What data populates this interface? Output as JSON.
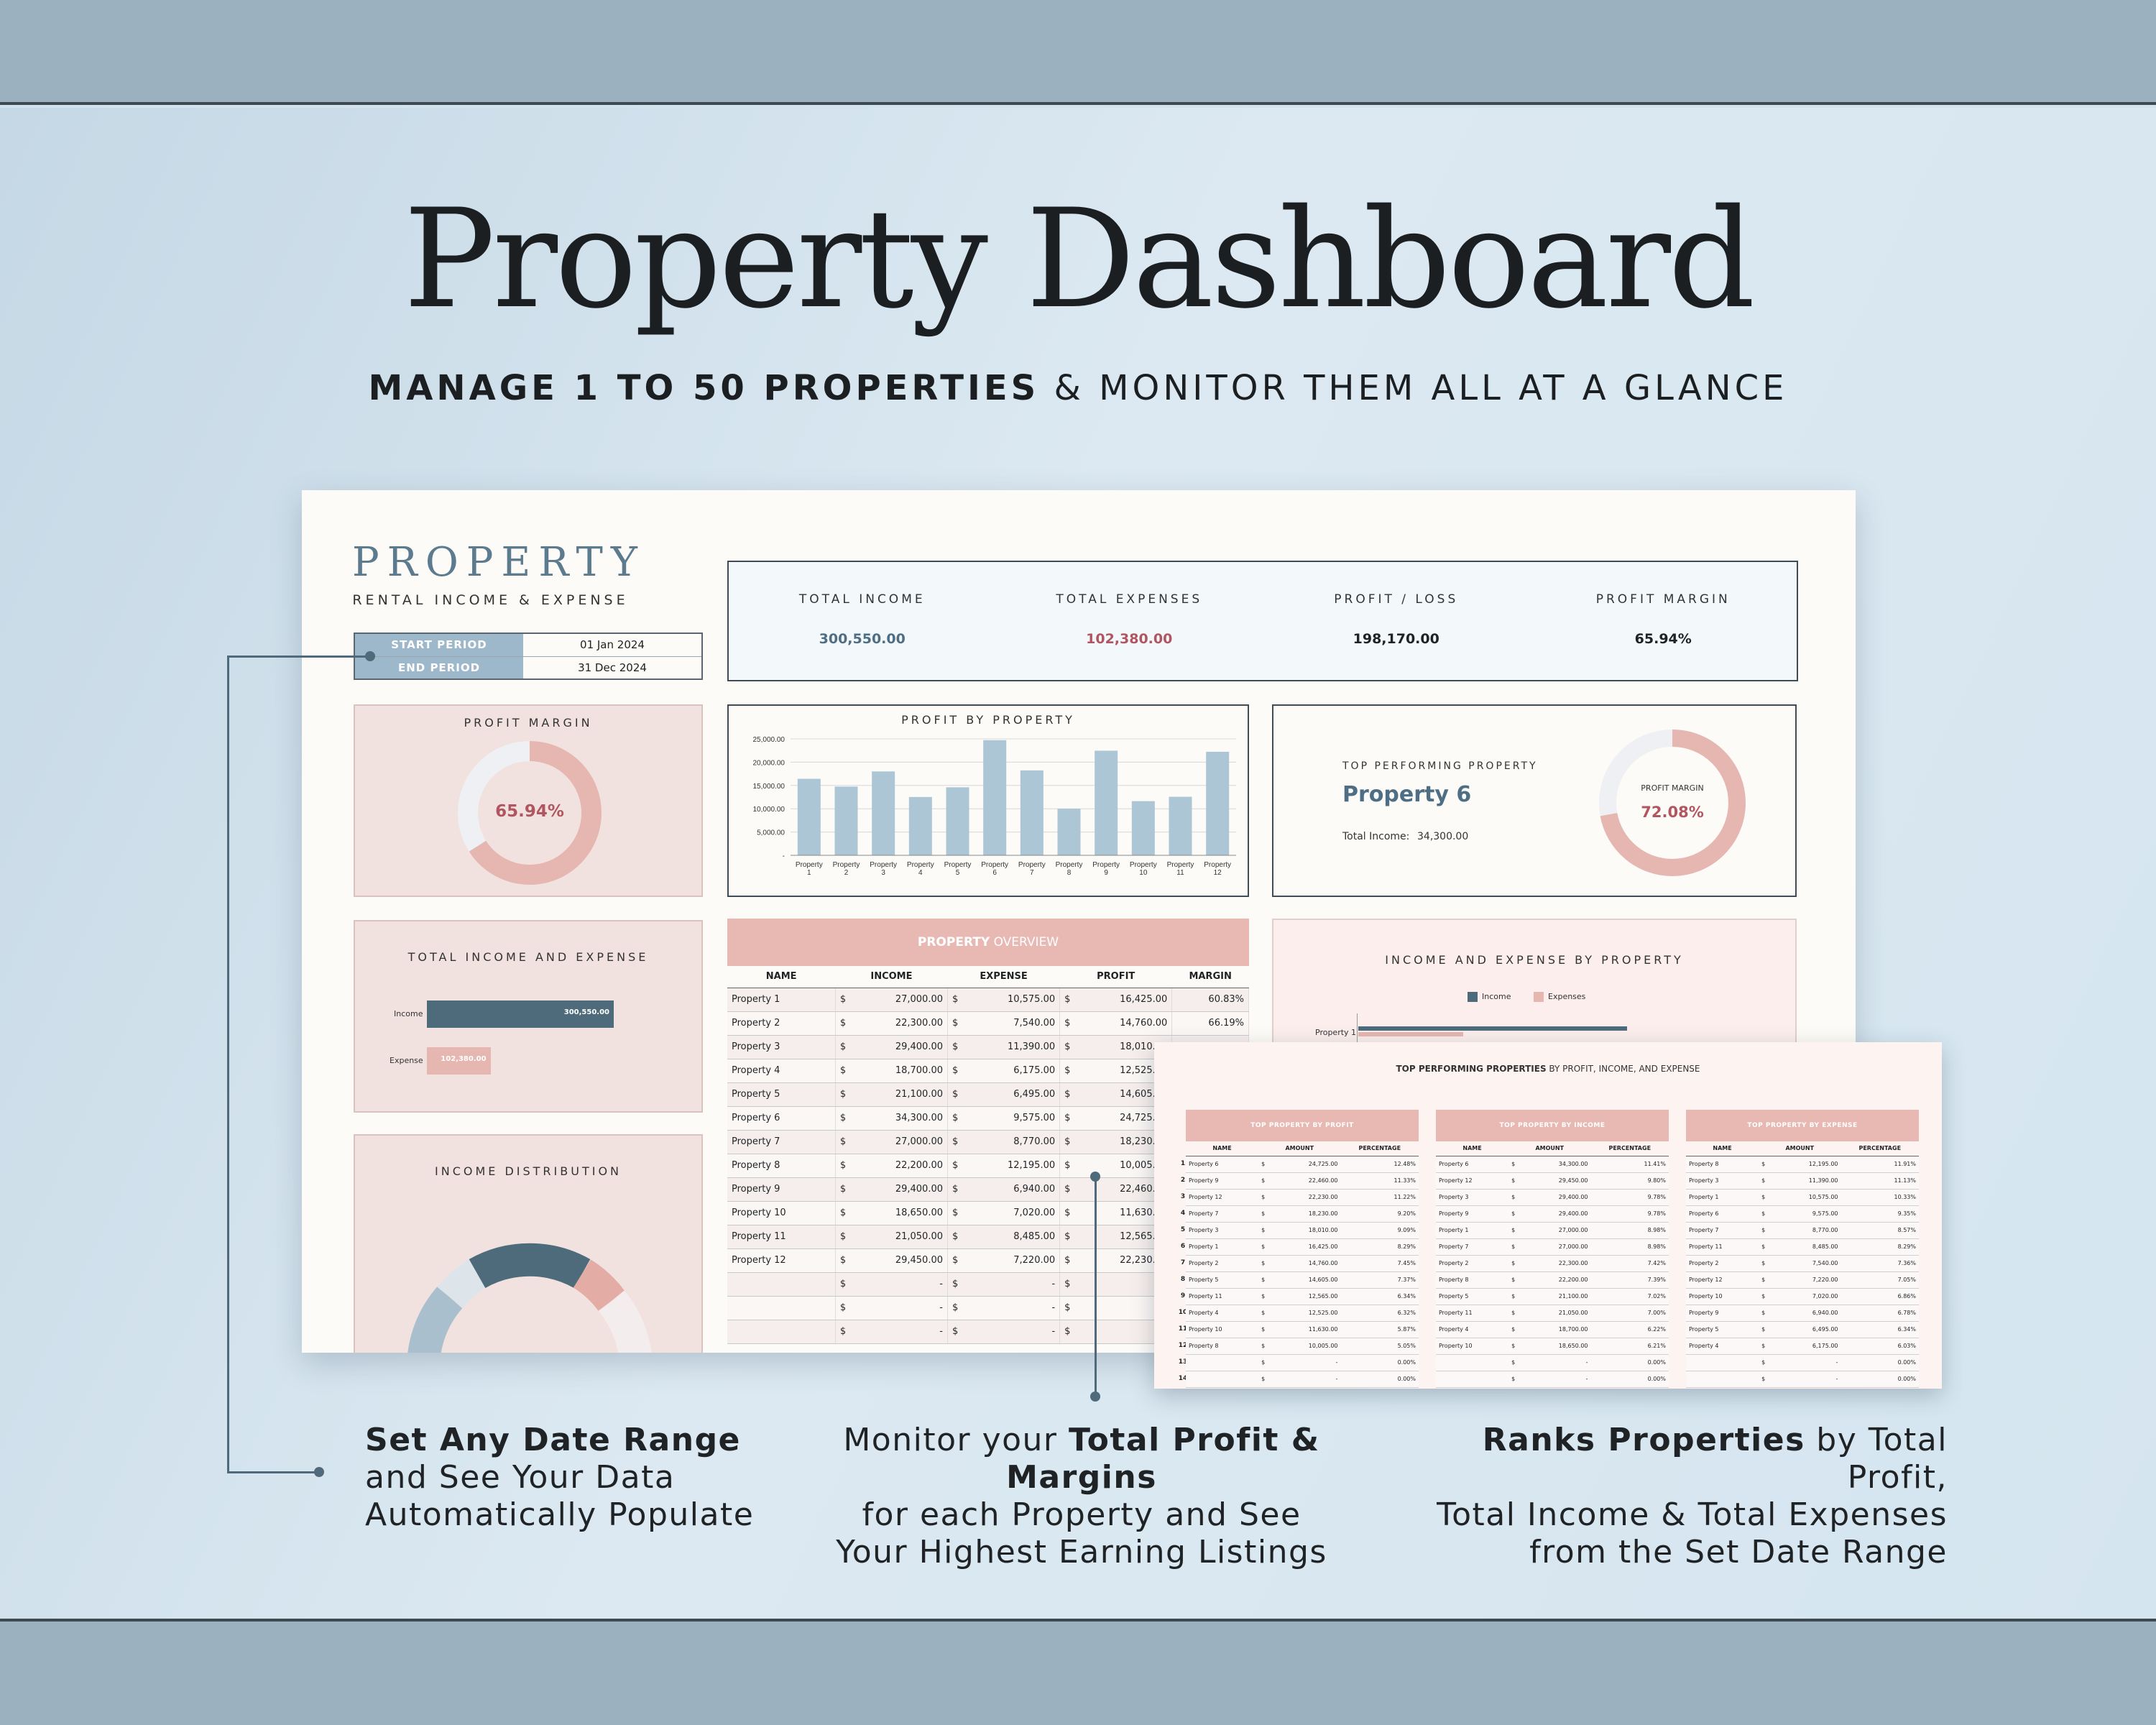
{
  "hero": {
    "title": "Property Dashboard",
    "subtitle_bold": "MANAGE 1 TO 50 PROPERTIES",
    "subtitle_rest": " & MONITOR THEM ALL AT A GLANCE"
  },
  "brand": {
    "name": "PROPERTY",
    "tagline": "RENTAL INCOME & EXPENSE"
  },
  "period": {
    "start_label": "START PERIOD",
    "start_value": "01 Jan 2024",
    "end_label": "END PERIOD",
    "end_value": "31 Dec 2024"
  },
  "kpis": [
    {
      "label": "TOTAL INCOME",
      "value": "300,550.00",
      "color": "#4d6e84"
    },
    {
      "label": "TOTAL EXPENSES",
      "value": "102,380.00",
      "color": "#b05660"
    },
    {
      "label": "PROFIT / LOSS",
      "value": "198,170.00",
      "color": "#222222"
    },
    {
      "label": "PROFIT MARGIN",
      "value": "65.94%",
      "color": "#222222"
    }
  ],
  "profit_margin": {
    "title": "PROFIT MARGIN",
    "value": "65.94%",
    "fraction": 0.6594
  },
  "top_property": {
    "title": "TOP PERFORMING PROPERTY",
    "name": "Property 6",
    "income_label": "Total Income:",
    "income_value": "34,300.00",
    "margin_label": "PROFIT MARGIN",
    "margin_value": "72.08%",
    "fraction": 0.7208
  },
  "income_expense": {
    "title": "TOTAL INCOME AND EXPENSE",
    "income_label": "Income",
    "income_value": "300,550.00",
    "expense_label": "Expense",
    "expense_value": "102,380.00",
    "income": 300550,
    "expense": 102380
  },
  "income_distribution": {
    "title": "INCOME DISTRIBUTION"
  },
  "overview": {
    "title_bold": "PROPERTY",
    "title_rest": " OVERVIEW",
    "headers": [
      "NAME",
      "INCOME",
      "EXPENSE",
      "PROFIT",
      "MARGIN"
    ],
    "currency": "$",
    "dash": "-",
    "rows": [
      [
        "Property 1",
        "27,000.00",
        "10,575.00",
        "16,425.00",
        "60.83%"
      ],
      [
        "Property 2",
        "22,300.00",
        "7,540.00",
        "14,760.00",
        "66.19%"
      ],
      [
        "Property 3",
        "29,400.00",
        "11,390.00",
        "18,010.00",
        ""
      ],
      [
        "Property 4",
        "18,700.00",
        "6,175.00",
        "12,525.00",
        ""
      ],
      [
        "Property 5",
        "21,100.00",
        "6,495.00",
        "14,605.00",
        ""
      ],
      [
        "Property 6",
        "34,300.00",
        "9,575.00",
        "24,725.00",
        ""
      ],
      [
        "Property 7",
        "27,000.00",
        "8,770.00",
        "18,230.00",
        ""
      ],
      [
        "Property 8",
        "22,200.00",
        "12,195.00",
        "10,005.00",
        ""
      ],
      [
        "Property 9",
        "29,400.00",
        "6,940.00",
        "22,460.00",
        ""
      ],
      [
        "Property 10",
        "18,650.00",
        "7,020.00",
        "11,630.00",
        ""
      ],
      [
        "Property 11",
        "21,050.00",
        "8,485.00",
        "12,565.00",
        ""
      ],
      [
        "Property 12",
        "29,450.00",
        "7,220.00",
        "22,230.00",
        ""
      ]
    ]
  },
  "ie_by_property": {
    "title": "INCOME AND EXPENSE BY PROPERTY",
    "legend_income": "Income",
    "legend_expense": "Expenses",
    "first_row": "Property 1"
  },
  "top_panel": {
    "title_bold": "TOP PERFORMING PROPERTIES",
    "title_rest": " BY PROFIT, INCOME, AND EXPENSE",
    "headers": [
      "NAME",
      "AMOUNT",
      "PERCENTAGE"
    ],
    "row_numbers": [
      "1",
      "2",
      "3",
      "4",
      "5",
      "6",
      "7",
      "8",
      "9",
      "10",
      "11",
      "12",
      "13",
      "14"
    ],
    "tables": [
      {
        "title": "TOP PROPERTY BY PROFIT",
        "rows": [
          [
            "Property 6",
            "24,725.00",
            "12.48%"
          ],
          [
            "Property 9",
            "22,460.00",
            "11.33%"
          ],
          [
            "Property 12",
            "22,230.00",
            "11.22%"
          ],
          [
            "Property 7",
            "18,230.00",
            "9.20%"
          ],
          [
            "Property 3",
            "18,010.00",
            "9.09%"
          ],
          [
            "Property 1",
            "16,425.00",
            "8.29%"
          ],
          [
            "Property 2",
            "14,760.00",
            "7.45%"
          ],
          [
            "Property 5",
            "14,605.00",
            "7.37%"
          ],
          [
            "Property 11",
            "12,565.00",
            "6.34%"
          ],
          [
            "Property 4",
            "12,525.00",
            "6.32%"
          ],
          [
            "Property 10",
            "11,630.00",
            "5.87%"
          ],
          [
            "Property 8",
            "10,005.00",
            "5.05%"
          ],
          [
            "",
            "-",
            "0.00%"
          ],
          [
            "",
            "-",
            "0.00%"
          ]
        ]
      },
      {
        "title": "TOP PROPERTY BY INCOME",
        "rows": [
          [
            "Property 6",
            "34,300.00",
            "11.41%"
          ],
          [
            "Property 12",
            "29,450.00",
            "9.80%"
          ],
          [
            "Property 3",
            "29,400.00",
            "9.78%"
          ],
          [
            "Property 9",
            "29,400.00",
            "9.78%"
          ],
          [
            "Property 1",
            "27,000.00",
            "8.98%"
          ],
          [
            "Property 7",
            "27,000.00",
            "8.98%"
          ],
          [
            "Property 2",
            "22,300.00",
            "7.42%"
          ],
          [
            "Property 8",
            "22,200.00",
            "7.39%"
          ],
          [
            "Property 5",
            "21,100.00",
            "7.02%"
          ],
          [
            "Property 11",
            "21,050.00",
            "7.00%"
          ],
          [
            "Property 4",
            "18,700.00",
            "6.22%"
          ],
          [
            "Property 10",
            "18,650.00",
            "6.21%"
          ],
          [
            "",
            "-",
            "0.00%"
          ],
          [
            "",
            "-",
            "0.00%"
          ]
        ]
      },
      {
        "title": "TOP PROPERTY BY EXPENSE",
        "rows": [
          [
            "Property 8",
            "12,195.00",
            "11.91%"
          ],
          [
            "Property 3",
            "11,390.00",
            "11.13%"
          ],
          [
            "Property 1",
            "10,575.00",
            "10.33%"
          ],
          [
            "Property 6",
            "9,575.00",
            "9.35%"
          ],
          [
            "Property 7",
            "8,770.00",
            "8.57%"
          ],
          [
            "Property 11",
            "8,485.00",
            "8.29%"
          ],
          [
            "Property 2",
            "7,540.00",
            "7.36%"
          ],
          [
            "Property 12",
            "7,220.00",
            "7.05%"
          ],
          [
            "Property 10",
            "7,020.00",
            "6.86%"
          ],
          [
            "Property 9",
            "6,940.00",
            "6.78%"
          ],
          [
            "Property 5",
            "6,495.00",
            "6.34%"
          ],
          [
            "Property 4",
            "6,175.00",
            "6.03%"
          ],
          [
            "",
            "-",
            "0.00%"
          ],
          [
            "",
            "-",
            "0.00%"
          ]
        ]
      }
    ]
  },
  "captions": [
    {
      "bold": "Set Any Date Range",
      "line2": "and See Your Data",
      "line3": "Automatically Populate"
    },
    {
      "pre": "Monitor your ",
      "bold": "Total Profit & Margins",
      "line2": "for each Property and See",
      "line3": "Your Highest Earning Listings"
    },
    {
      "bold": "Ranks Properties",
      "post": " by Total Profit,",
      "line2": "Total Income & Total Expenses",
      "line3": "from the Set Date Range"
    }
  ],
  "chart_data": {
    "type": "bar",
    "title": "PROFIT BY PROPERTY",
    "categories": [
      "Property 1",
      "Property 2",
      "Property 3",
      "Property 4",
      "Property 5",
      "Property 6",
      "Property 7",
      "Property 8",
      "Property 9",
      "Property 10",
      "Property 11",
      "Property 12"
    ],
    "values": [
      16425,
      14760,
      18010,
      12525,
      14605,
      24725,
      18230,
      10005,
      22460,
      11630,
      12565,
      22230
    ],
    "yticks": [
      "25,000.00",
      "20,000.00",
      "15,000.00",
      "10,000.00",
      "5,000.00",
      "-"
    ],
    "ylim": [
      0,
      25000
    ],
    "bar_color": "#adc6d6",
    "grid": true
  }
}
